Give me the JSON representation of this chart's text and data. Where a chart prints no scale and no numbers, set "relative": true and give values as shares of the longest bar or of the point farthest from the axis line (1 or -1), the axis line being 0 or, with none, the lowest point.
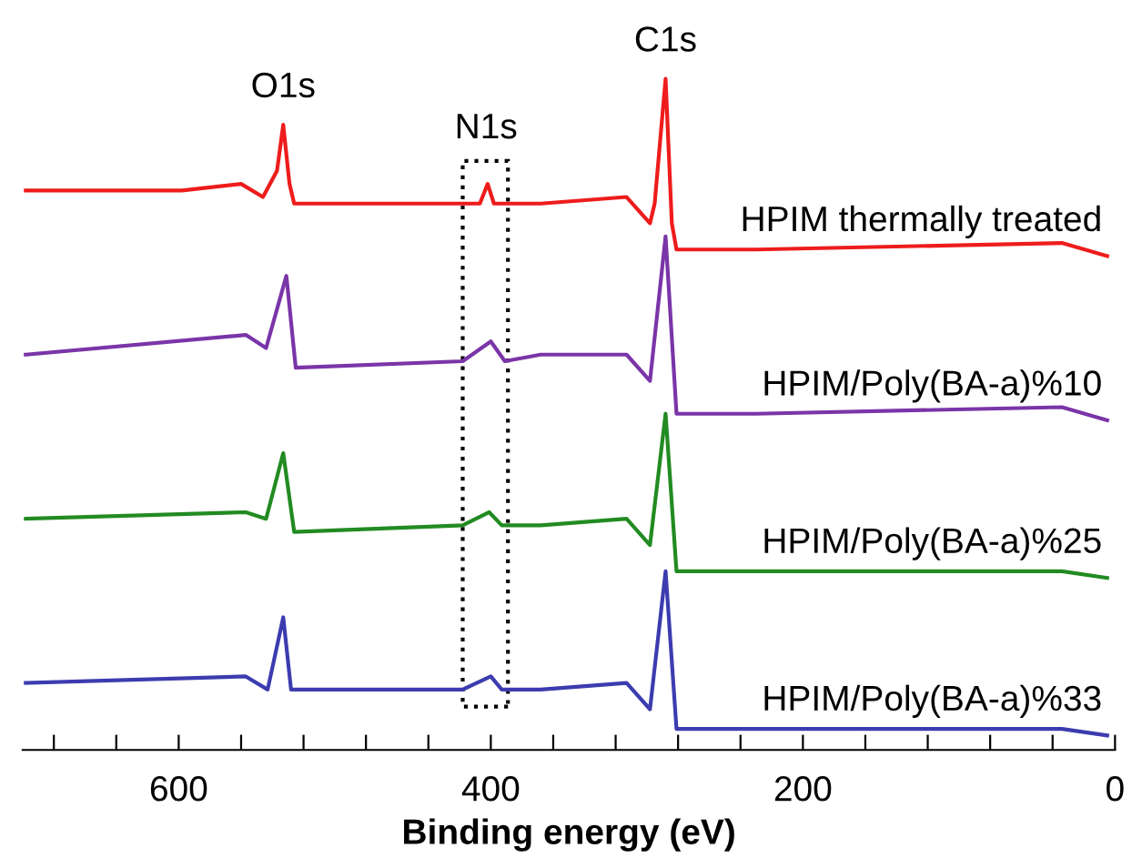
{
  "chart_data": {
    "type": "line",
    "relative": true,
    "xlabel": "Binding energy (eV)",
    "xlim": [
      700,
      0
    ],
    "xticks": [
      {
        "value": 680,
        "label": null
      },
      {
        "value": 640,
        "label": null
      },
      600,
      {
        "value": 560,
        "label": null
      },
      {
        "value": 520,
        "label": null
      },
      {
        "value": 480,
        "label": null
      },
      {
        "value": 440,
        "label": null
      },
      400,
      {
        "value": 360,
        "label": null
      },
      {
        "value": 320,
        "label": null
      },
      {
        "value": 280,
        "label": null
      },
      {
        "value": 240,
        "label": null
      },
      200,
      {
        "value": 160,
        "label": null
      },
      {
        "value": 120,
        "label": null
      },
      {
        "value": 80,
        "label": null
      },
      {
        "value": 40,
        "label": null
      },
      0
    ],
    "tick_labels": "x",
    "grid": false,
    "legend": false,
    "series": [
      {
        "name": "HPIM thermally treated",
        "color": "#ee1c1c",
        "x": [
          698,
          598,
          560,
          546,
          537,
          533,
          529,
          526,
          483,
          418,
          407,
          402,
          398,
          368,
          313,
          298,
          295,
          288,
          284,
          281,
          230,
          34,
          5
        ],
        "values": [
          0.83,
          0.83,
          0.84,
          0.82,
          0.86,
          0.93,
          0.84,
          0.81,
          0.81,
          0.81,
          0.81,
          0.84,
          0.81,
          0.81,
          0.82,
          0.78,
          0.81,
          1.0,
          0.78,
          0.74,
          0.74,
          0.75,
          0.73
        ]
      },
      {
        "name": "HPIM/Poly(BA-a)%10",
        "color": "#7a35a8",
        "x": [
          698,
          557,
          544,
          531,
          525,
          418,
          400,
          391,
          368,
          313,
          298,
          288,
          281,
          230,
          34,
          5
        ],
        "values": [
          0.58,
          0.61,
          0.59,
          0.7,
          0.56,
          0.57,
          0.6,
          0.57,
          0.58,
          0.58,
          0.54,
          0.76,
          0.49,
          0.49,
          0.5,
          0.48
        ]
      },
      {
        "name": "HPIM/Poly(BA-a)%25",
        "color": "#228b22",
        "x": [
          698,
          557,
          544,
          533,
          526,
          418,
          401,
          393,
          368,
          313,
          298,
          288,
          281,
          34,
          5
        ],
        "values": [
          0.33,
          0.34,
          0.33,
          0.43,
          0.31,
          0.32,
          0.34,
          0.32,
          0.32,
          0.33,
          0.29,
          0.49,
          0.25,
          0.25,
          0.24
        ]
      },
      {
        "name": "HPIM/Poly(BA-a)%33",
        "color": "#3c3cb0",
        "x": [
          698,
          557,
          543,
          533,
          528,
          418,
          400,
          393,
          368,
          313,
          298,
          288,
          281,
          34,
          5
        ],
        "values": [
          0.08,
          0.09,
          0.07,
          0.18,
          0.07,
          0.07,
          0.09,
          0.07,
          0.07,
          0.08,
          0.04,
          0.25,
          0.01,
          0.01,
          0.0
        ]
      }
    ],
    "annotations": [
      {
        "text": "O1s",
        "x": 533,
        "y": 0.93
      },
      {
        "text": "C1s",
        "x": 288,
        "y": 1.0
      },
      {
        "text": "N1s",
        "x": 403,
        "y": 0.84
      }
    ]
  }
}
